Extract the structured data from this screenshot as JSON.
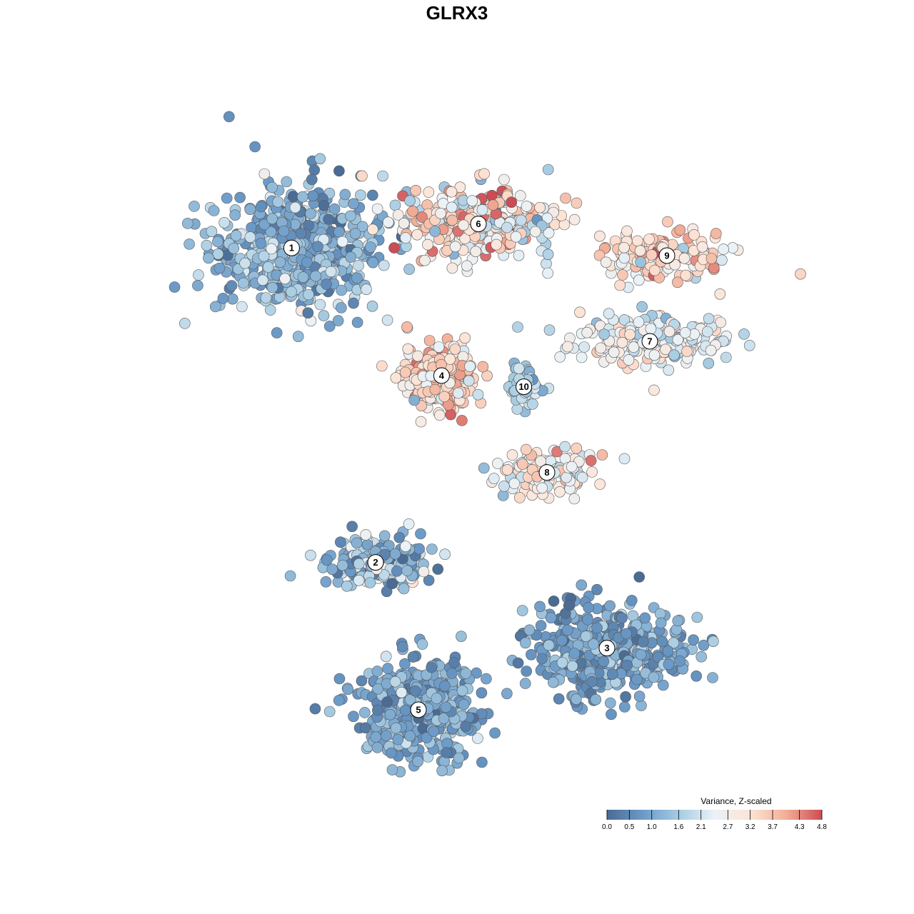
{
  "chart_data": {
    "type": "scatter",
    "title": "GLRX3",
    "xlabel": "",
    "ylabel": "",
    "xlim": [
      -45,
      45
    ],
    "ylim": [
      -45,
      45
    ],
    "grid": false,
    "axes_visible": false,
    "legend": {
      "title": "Variance, Z-scaled",
      "placement": "bottom-right",
      "type": "colorbar",
      "range": [
        0.0,
        4.8
      ],
      "ticks": [
        "0.0",
        "0.5",
        "1.0",
        "1.6",
        "2.1",
        "2.7",
        "3.2",
        "3.7",
        "4.3",
        "4.8"
      ]
    },
    "color_scale": {
      "low": "#4a6b93",
      "stops": [
        "#4a6b93",
        "#6b9ac8",
        "#a6cbe1",
        "#eaf2f7",
        "#fde4d6",
        "#f2ae96",
        "#cc4c55"
      ],
      "high": "#cc4c55"
    },
    "clusters": [
      {
        "label": "1",
        "x": -19.3,
        "y": 24.4,
        "sx": 9.5,
        "sy": 6.8,
        "mean": 1.2,
        "spread": 0.55,
        "n": 520
      },
      {
        "label": "2",
        "x": -9.5,
        "y": -12.3,
        "sx": 5.5,
        "sy": 2.6,
        "mean": 1.3,
        "spread": 0.7,
        "n": 190
      },
      {
        "label": "3",
        "x": 17.5,
        "y": -22.3,
        "sx": 8.2,
        "sy": 5.0,
        "mean": 0.9,
        "spread": 0.45,
        "n": 430
      },
      {
        "label": "4",
        "x": -1.8,
        "y": 9.5,
        "sx": 3.8,
        "sy": 3.6,
        "mean": 3.3,
        "spread": 0.6,
        "n": 260
      },
      {
        "label": "5",
        "x": -4.5,
        "y": -29.5,
        "sx": 6.2,
        "sy": 5.2,
        "mean": 1.0,
        "spread": 0.45,
        "n": 430
      },
      {
        "label": "6",
        "x": 2.5,
        "y": 27.2,
        "sx": 8.0,
        "sy": 4.0,
        "mean": 3.0,
        "spread": 0.9,
        "n": 320
      },
      {
        "label": "7",
        "x": 22.5,
        "y": 13.5,
        "sx": 8.0,
        "sy": 2.5,
        "mean": 2.4,
        "spread": 0.55,
        "n": 220
      },
      {
        "label": "8",
        "x": 10.5,
        "y": -1.8,
        "sx": 5.0,
        "sy": 2.2,
        "mean": 2.7,
        "spread": 0.6,
        "n": 150
      },
      {
        "label": "9",
        "x": 24.5,
        "y": 23.5,
        "sx": 6.5,
        "sy": 2.8,
        "mean": 3.2,
        "spread": 0.6,
        "n": 170
      },
      {
        "label": "10",
        "x": 7.8,
        "y": 8.2,
        "sx": 1.6,
        "sy": 2.0,
        "mean": 1.7,
        "spread": 0.4,
        "n": 60
      }
    ]
  }
}
